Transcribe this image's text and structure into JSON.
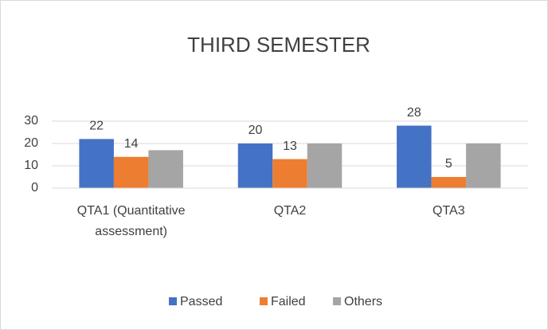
{
  "chart_data": {
    "type": "bar",
    "title": "THIRD SEMESTER",
    "categories": [
      "QTA1 (Quantitative assessment)",
      "QTA2",
      "QTA3"
    ],
    "series": [
      {
        "name": "Passed",
        "color": "#4472c4",
        "values": [
          22,
          20,
          28
        ],
        "data_labels": true
      },
      {
        "name": "Failed",
        "color": "#ed7d31",
        "values": [
          14,
          13,
          5
        ],
        "data_labels": true
      },
      {
        "name": "Others",
        "color": "#a5a5a5",
        "values": [
          17,
          20,
          20
        ],
        "data_labels": false
      }
    ],
    "ylim": [
      0,
      30
    ],
    "yticks": [
      0,
      10,
      20,
      30
    ],
    "grid": true,
    "legend": "bottom"
  }
}
